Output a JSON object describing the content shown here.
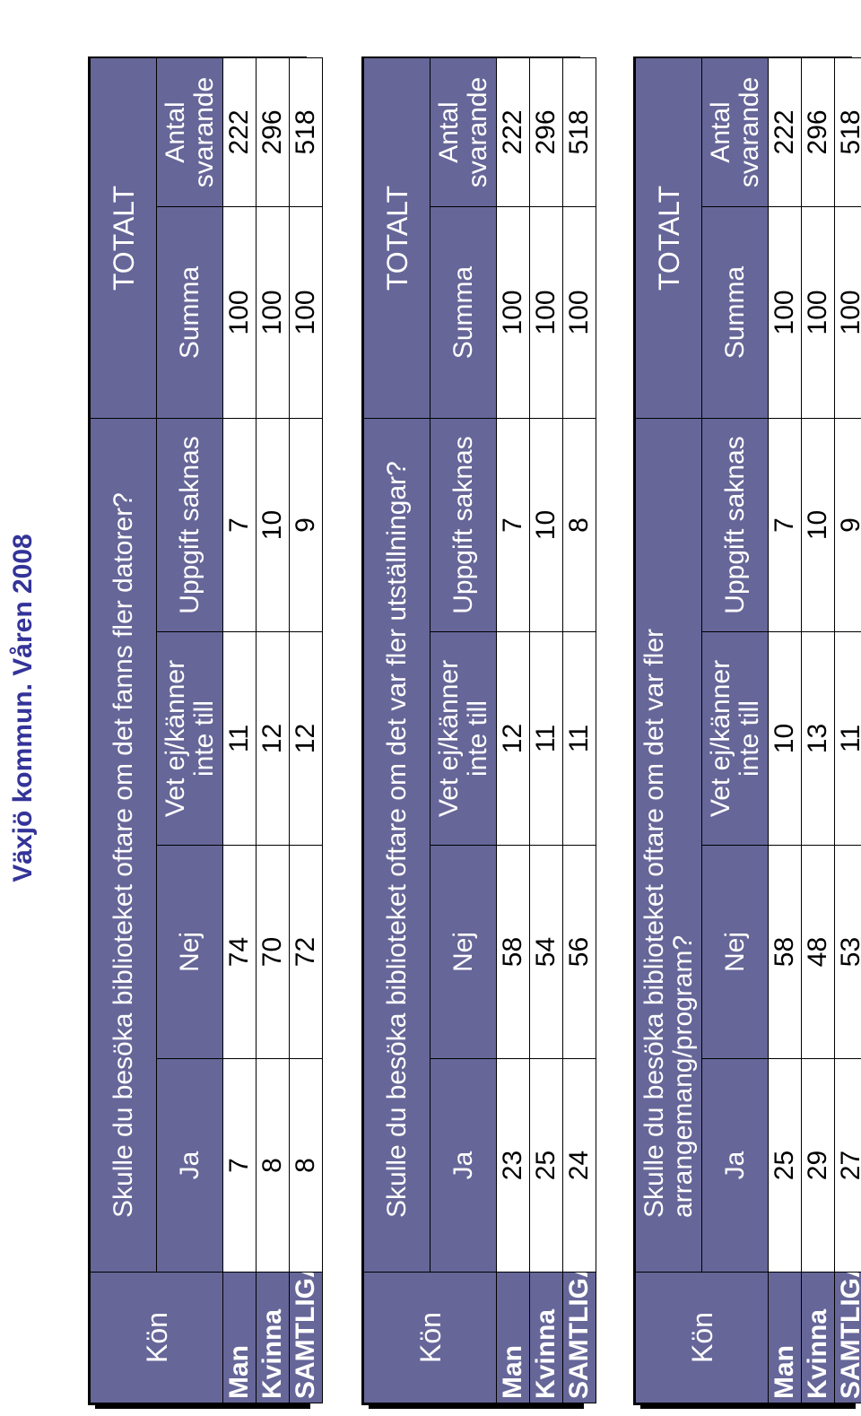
{
  "page": {
    "title": "Växjö kommun. Våren 2008"
  },
  "tables": [
    {
      "kon_header": "Kön",
      "question": "Skulle du besöka biblioteket oftare om det fanns fler datorer?",
      "totalt": "TOTALT",
      "columns": [
        "Ja",
        "Nej",
        "Vet ej/känner inte till",
        "Uppgift saknas",
        "Summa",
        "Antal svarande"
      ],
      "rows": [
        {
          "label": "Man",
          "values": [
            "7",
            "74",
            "11",
            "7",
            "100",
            "222"
          ]
        },
        {
          "label": "Kvinna",
          "values": [
            "8",
            "70",
            "12",
            "10",
            "100",
            "296"
          ]
        },
        {
          "label": "SAMTLIGA",
          "values": [
            "8",
            "72",
            "12",
            "9",
            "100",
            "518"
          ]
        }
      ]
    },
    {
      "kon_header": "Kön",
      "question": "Skulle du besöka biblioteket oftare om det var fler utställningar?",
      "totalt": "TOTALT",
      "columns": [
        "Ja",
        "Nej",
        "Vet ej/känner inte till",
        "Uppgift saknas",
        "Summa",
        "Antal svarande"
      ],
      "rows": [
        {
          "label": "Man",
          "values": [
            "23",
            "58",
            "12",
            "7",
            "100",
            "222"
          ]
        },
        {
          "label": "Kvinna",
          "values": [
            "25",
            "54",
            "11",
            "10",
            "100",
            "296"
          ]
        },
        {
          "label": "SAMTLIGA",
          "values": [
            "24",
            "56",
            "11",
            "8",
            "100",
            "518"
          ]
        }
      ]
    },
    {
      "kon_header": "Kön",
      "question": "Skulle du besöka biblioteket oftare om det var fler arrangemang/program?",
      "totalt": "TOTALT",
      "columns": [
        "Ja",
        "Nej",
        "Vet ej/känner inte till",
        "Uppgift saknas",
        "Summa",
        "Antal svarande"
      ],
      "rows": [
        {
          "label": "Man",
          "values": [
            "25",
            "58",
            "10",
            "7",
            "100",
            "222"
          ]
        },
        {
          "label": "Kvinna",
          "values": [
            "29",
            "48",
            "13",
            "10",
            "100",
            "296"
          ]
        },
        {
          "label": "SAMTLIGA",
          "values": [
            "27",
            "53",
            "11",
            "9",
            "100",
            "518"
          ]
        }
      ]
    }
  ],
  "colors": {
    "header_bg": "#666699",
    "header_text": "#ffffff",
    "title_text": "#333399"
  }
}
